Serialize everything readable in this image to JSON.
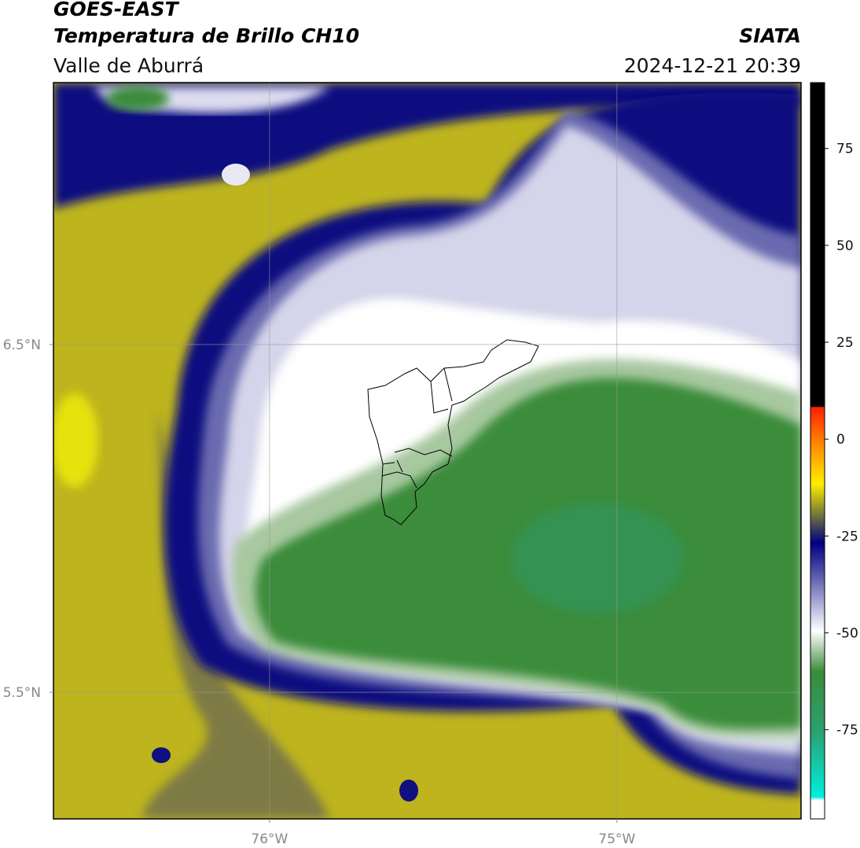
{
  "header": {
    "title": "GOES-EAST",
    "subtitle": "Temperatura de Brillo CH10",
    "region": "Valle de Aburrá",
    "source": "SIATA",
    "datetime": "2024-12-21 20:39"
  },
  "map": {
    "lonlim": [
      -76.622,
      -74.47
    ],
    "latlim": [
      5.136,
      7.253
    ],
    "xticks": [
      {
        "value": -76,
        "label": "76°W"
      },
      {
        "value": -75,
        "label": "75°W"
      }
    ],
    "yticks": [
      {
        "value": 6.5,
        "label": "6.5°N"
      },
      {
        "value": 5.5,
        "label": "5.5°N"
      }
    ],
    "grid": true
  },
  "colorbar": {
    "lim": [
      -98,
      92
    ],
    "ticks": [
      75,
      50,
      25,
      0,
      -25,
      -50,
      -75
    ]
  }
}
